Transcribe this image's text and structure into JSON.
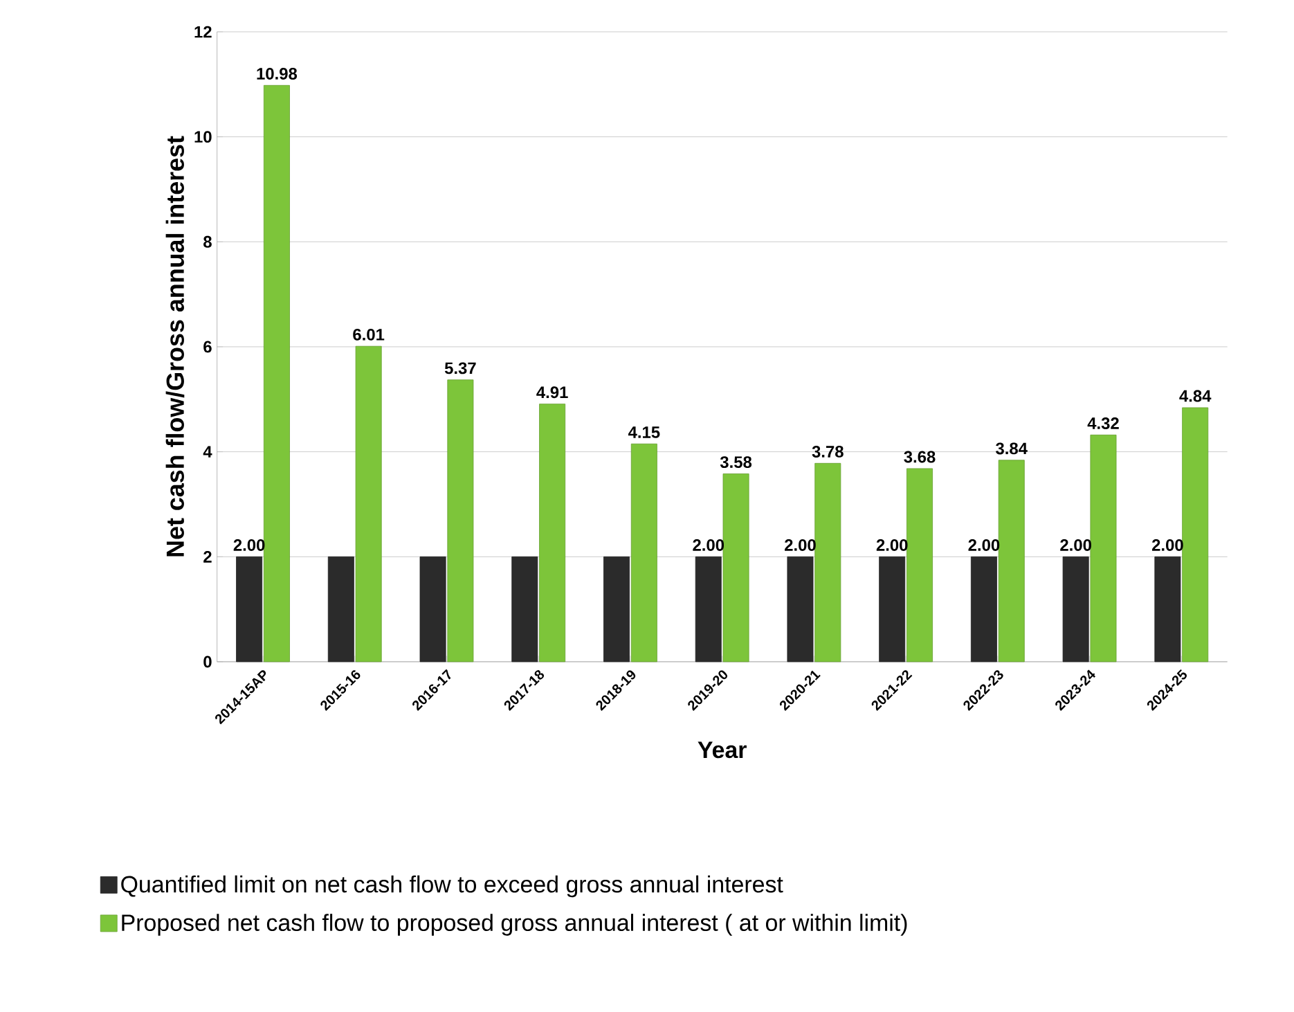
{
  "chart_data": {
    "type": "bar",
    "xlabel": "Year",
    "ylabel": "Net cash flow/Gross annual interest",
    "categories": [
      "2014-15AP",
      "2015-16",
      "2016-17",
      "2017-18",
      "2018-19",
      "2019-20",
      "2020-21",
      "2021-22",
      "2022-23",
      "2023-24",
      "2024-25"
    ],
    "series": [
      {
        "name": "Quantified limit on net cash flow to exceed gross annual interest",
        "color": "#2b2b2b",
        "values": [
          2,
          2,
          2,
          2,
          2,
          2,
          2,
          2,
          2,
          2,
          2
        ],
        "value_labels": [
          "2.00",
          null,
          null,
          null,
          null,
          "2.00",
          "2.00",
          "2.00",
          "2.00",
          "2.00",
          "2.00"
        ]
      },
      {
        "name": "Proposed net cash flow to  proposed gross annual interest ( at or within limit)",
        "color": "#7dc53a",
        "values": [
          10.98,
          6.01,
          5.37,
          4.91,
          4.15,
          3.58,
          3.78,
          3.68,
          3.84,
          4.32,
          4.84
        ],
        "value_labels": [
          "10.98",
          "6.01",
          "5.37",
          "4.91",
          "4.15",
          "3.58",
          "3.78",
          "3.68",
          "3.84",
          "4.32",
          "4.84"
        ]
      }
    ],
    "ylim": [
      0,
      12
    ],
    "yticks": [
      0,
      2,
      4,
      6,
      8,
      10,
      12
    ],
    "grid": "y",
    "legend": "bottom"
  }
}
